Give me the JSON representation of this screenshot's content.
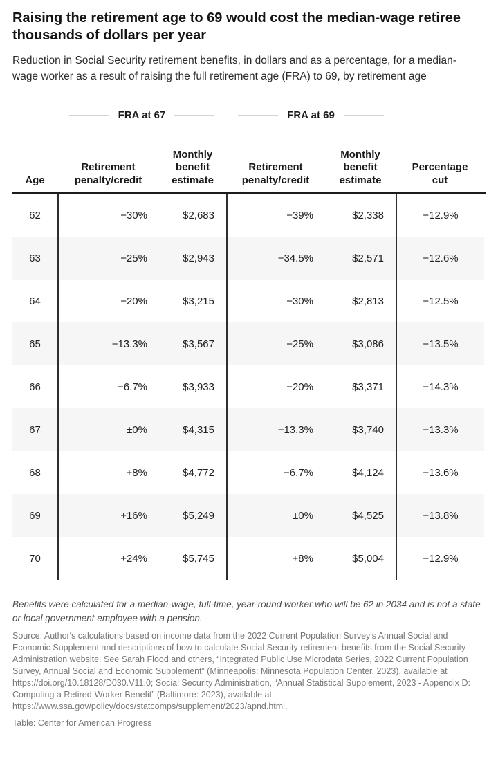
{
  "header": {
    "title": "Raising the retirement age to 69 would cost the median-wage retiree thousands of dollars per year",
    "subtitle": "Reduction in Social Security retirement benefits, in dollars and as a percentage, for a median-wage worker as a result of raising the full retirement age (FRA) to 69, by retirement age"
  },
  "chart_data": {
    "type": "table",
    "title": "Raising the retirement age to 69 would cost the median-wage retiree thousands of dollars per year",
    "subtitle": "Reduction in Social Security retirement benefits, in dollars and as a percentage, for a median-wage worker as a result of raising the full retirement age (FRA) to 69, by retirement age",
    "group_headers": [
      "FRA at 67",
      "FRA at 69"
    ],
    "column_groups": [
      {
        "label": "FRA at 67",
        "columns": [
          "Retirement penalty/credit",
          "Monthly benefit estimate"
        ]
      },
      {
        "label": "FRA at 69",
        "columns": [
          "Retirement penalty/credit",
          "Monthly benefit estimate"
        ]
      }
    ],
    "columns": [
      "Age",
      "Retirement penalty/credit",
      "Monthly benefit estimate",
      "Retirement penalty/credit",
      "Monthly benefit estimate",
      "Percentage cut"
    ],
    "rows": [
      [
        "62",
        "−30%",
        "$2,683",
        "−39%",
        "$2,338",
        "−12.9%"
      ],
      [
        "63",
        "−25%",
        "$2,943",
        "−34.5%",
        "$2,571",
        "−12.6%"
      ],
      [
        "64",
        "−20%",
        "$3,215",
        "−30%",
        "$2,813",
        "−12.5%"
      ],
      [
        "65",
        "−13.3%",
        "$3,567",
        "−25%",
        "$3,086",
        "−13.5%"
      ],
      [
        "66",
        "−6.7%",
        "$3,933",
        "−20%",
        "$3,371",
        "−14.3%"
      ],
      [
        "67",
        "±0%",
        "$4,315",
        "−13.3%",
        "$3,740",
        "−13.3%"
      ],
      [
        "68",
        "+8%",
        "$4,772",
        "−6.7%",
        "$4,124",
        "−13.6%"
      ],
      [
        "69",
        "+16%",
        "$5,249",
        "±0%",
        "$4,525",
        "−13.8%"
      ],
      [
        "70",
        "+24%",
        "$5,745",
        "+8%",
        "$5,004",
        "−12.9%"
      ]
    ]
  },
  "footer": {
    "note": "Benefits were calculated for a median-wage, full-time, year-round worker who will be 62 in 2034 and is not a state or local government employee with a pension.",
    "source": "Source: Author's calculations based on income data from the 2022 Current Population Survey's Annual Social and Economic Supplement and descriptions of how to calculate Social Security retirement benefits from the Social Security Administration website. See Sarah Flood and others, “Integrated Public Use Microdata Series, 2022 Current Population Survey, Annual Social and Economic Supplement” (Minneapolis: Minnesota Population Center, 2023), available at https://doi.org/10.18128/D030.V11.0; Social Security Administration, “Annual Statistical Supplement, 2023 - Appendix D: Computing a Retired-Worker Benefit” (Baltimore: 2023), available at https://www.ssa.gov/policy/docs/statcomps/supplement/2023/apnd.html.",
    "credit": "Table: Center for American Progress"
  },
  "colors": {
    "header_rule": "#1c1c1c",
    "vertical_rule": "#2e2e2e",
    "row_alt_background": "#f6f6f6",
    "decorative_line": "#d4d4d4",
    "muted_text": "#777777"
  }
}
